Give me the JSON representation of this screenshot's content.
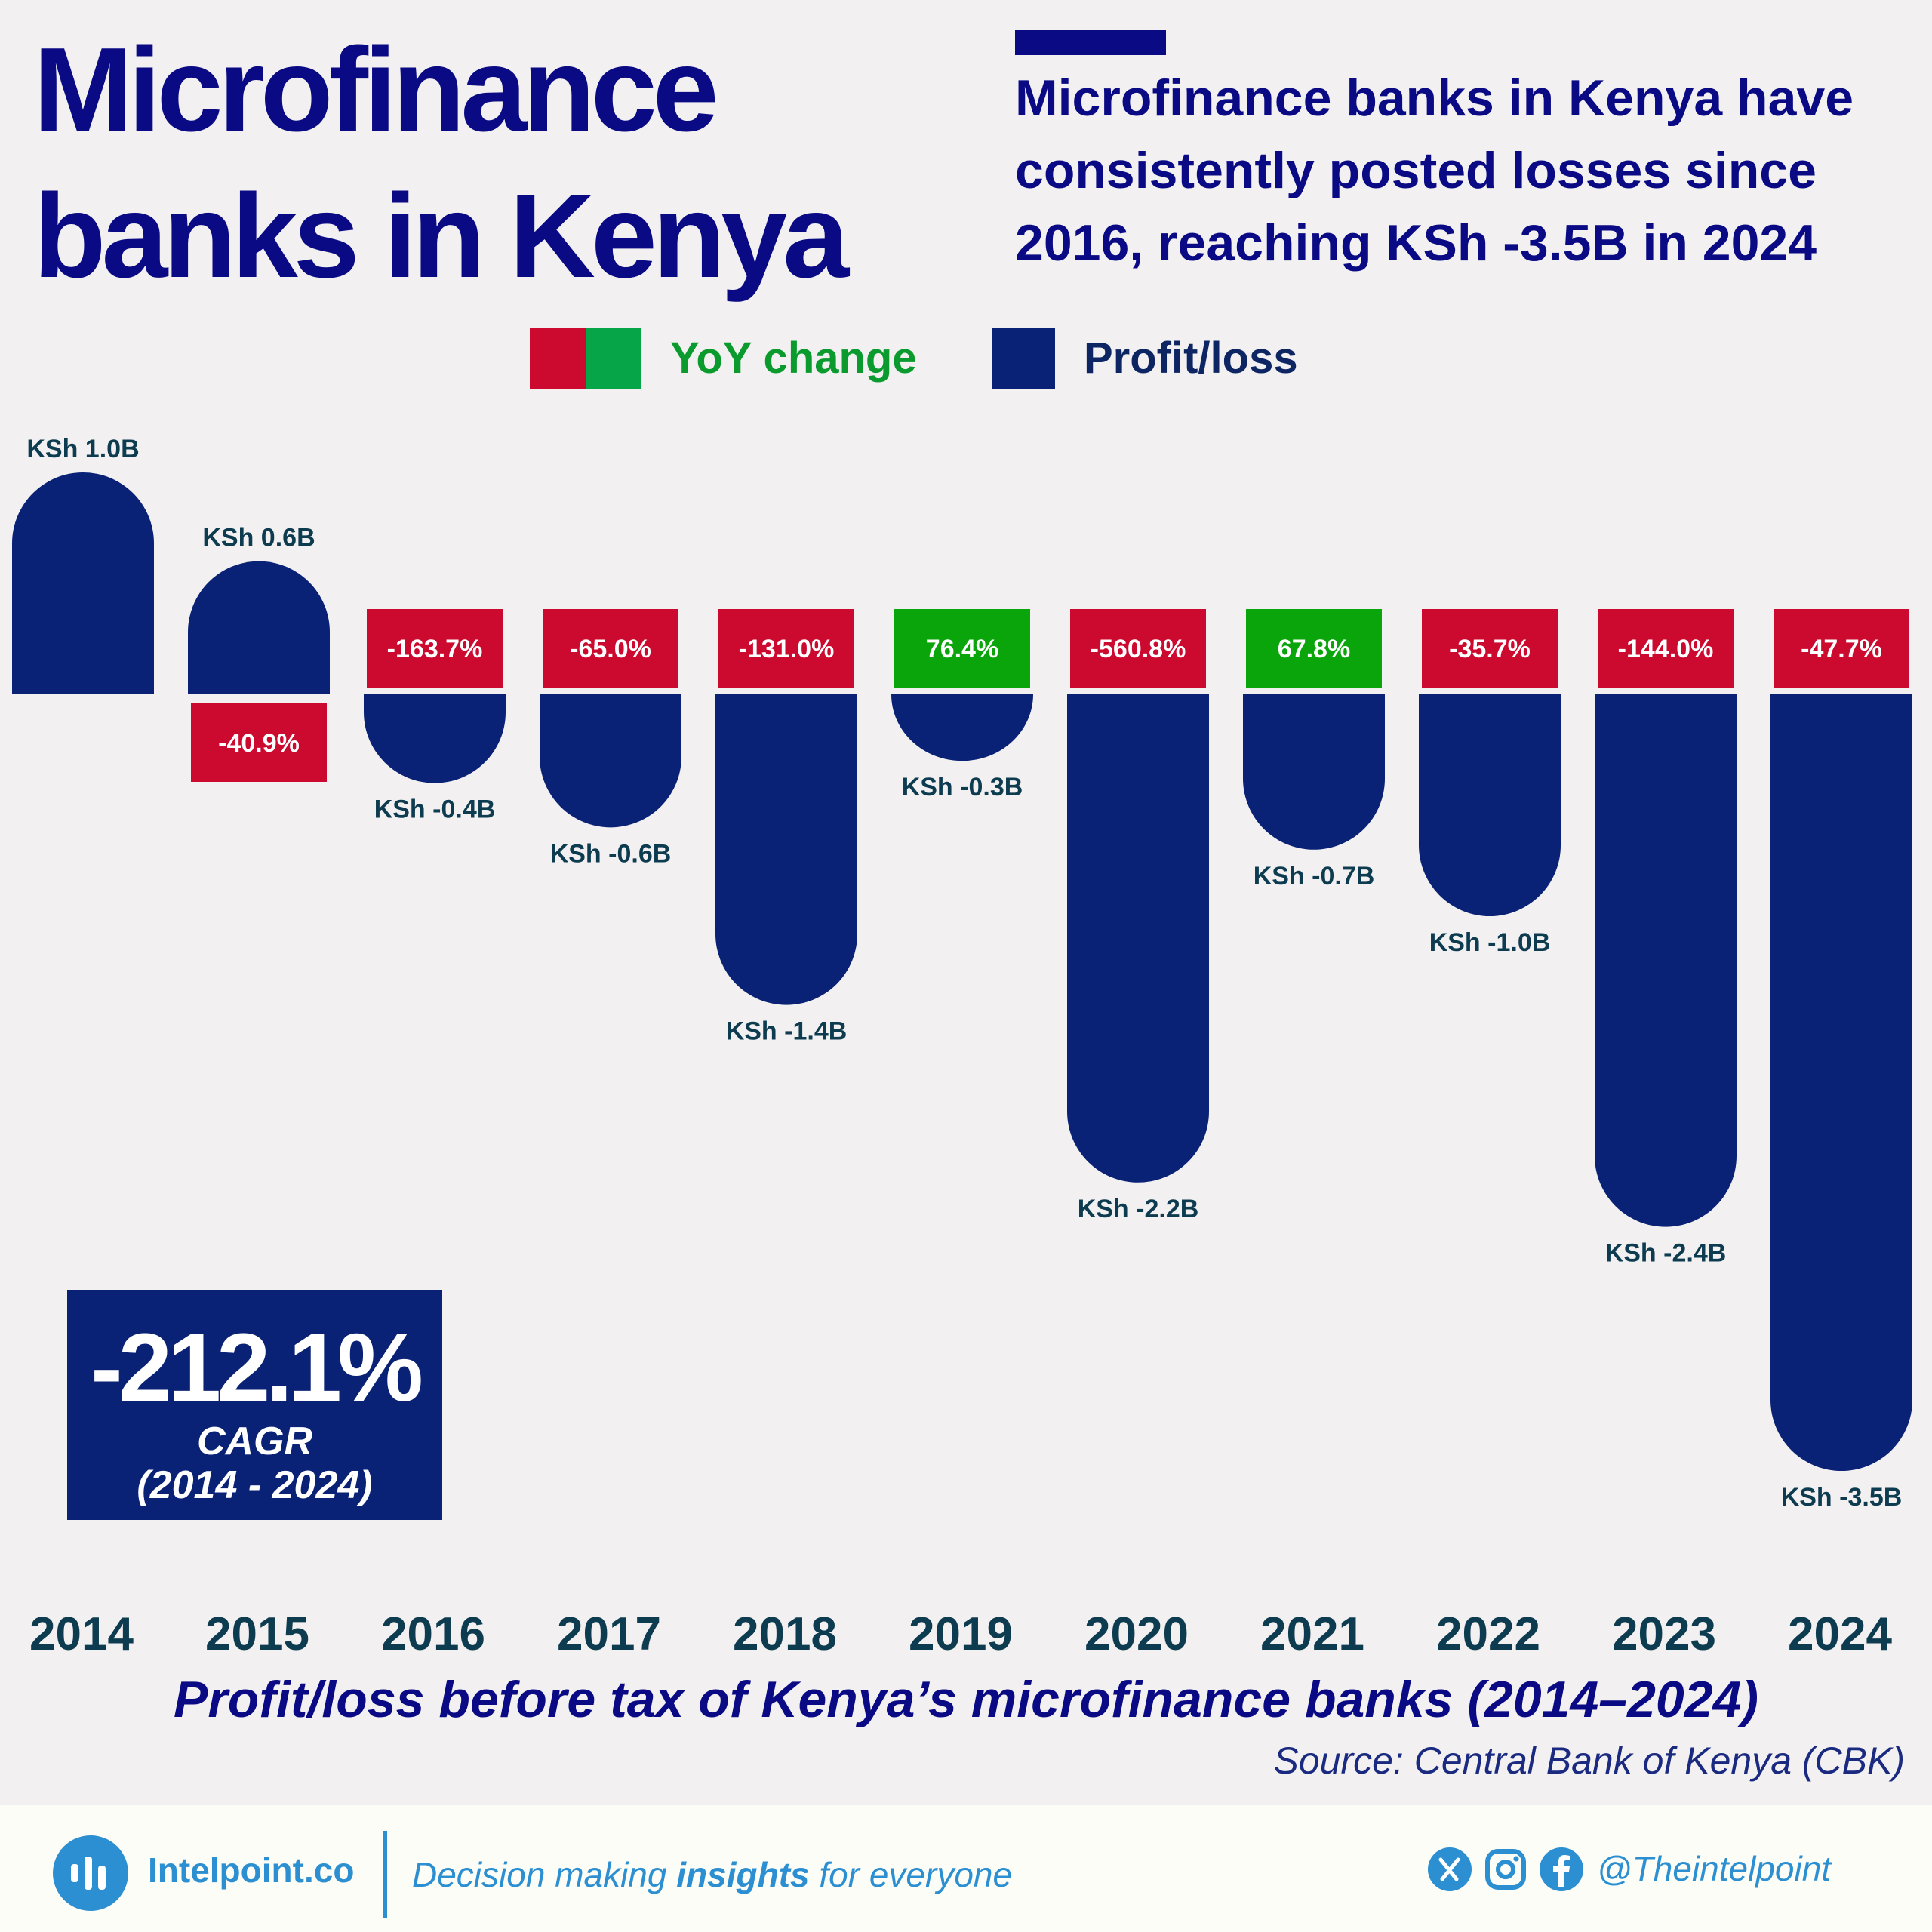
{
  "title": "Microfinance banks in Kenya",
  "subtitle": "Microfinance banks in Kenya have consistently posted losses since 2016, reaching KSh -3.5B in 2024",
  "legend": {
    "yoy": "YoY change",
    "profit": "Profit/loss"
  },
  "colors": {
    "navy": "#0a2275",
    "negative": "#cc0a30",
    "positive": "#05a548",
    "label": "#0d3b4f"
  },
  "chart_data": {
    "type": "bar",
    "categories": [
      "2014",
      "2015",
      "2016",
      "2017",
      "2018",
      "2019",
      "2020",
      "2021",
      "2022",
      "2023",
      "2024"
    ],
    "series": [
      {
        "name": "Profit/loss",
        "values": [
          1.0,
          0.6,
          -0.4,
          -0.6,
          -1.4,
          -0.3,
          -2.2,
          -0.7,
          -1.0,
          -2.4,
          -3.5
        ]
      },
      {
        "name": "YoY change",
        "values": [
          null,
          -40.9,
          -163.7,
          -65.0,
          -131.0,
          76.4,
          -560.8,
          67.8,
          -35.7,
          -144.0,
          -47.7
        ]
      }
    ],
    "value_labels": [
      "KSh 1.0B",
      "KSh 0.6B",
      "KSh -0.4B",
      "KSh -0.6B",
      "KSh -1.4B",
      "KSh -0.3B",
      "KSh -2.2B",
      "KSh -0.7B",
      "KSh -1.0B",
      "KSh -2.4B",
      "KSh -3.5B"
    ],
    "yoy_labels": [
      "",
      "-40.9%",
      "-163.7%",
      "-65.0%",
      "-131.0%",
      "76.4%",
      "-560.8%",
      "67.8%",
      "-35.7%",
      "-144.0%",
      "-47.7%"
    ],
    "caption": "Profit/loss before tax of Kenya’s microfinance banks (2014–2024)",
    "source": "Source: Central Bank of Kenya (CBK)"
  },
  "cagr": {
    "value": "-212.1%",
    "label": "CAGR",
    "period": "(2014 - 2024)"
  },
  "footer": {
    "brand": "Intelpoint.co",
    "tagline_pre": "Decision making ",
    "tagline_bold": "insights",
    "tagline_post": " for everyone",
    "handle": "@Theintelpoint",
    "icons": [
      "x-icon",
      "instagram-icon",
      "facebook-icon"
    ]
  }
}
